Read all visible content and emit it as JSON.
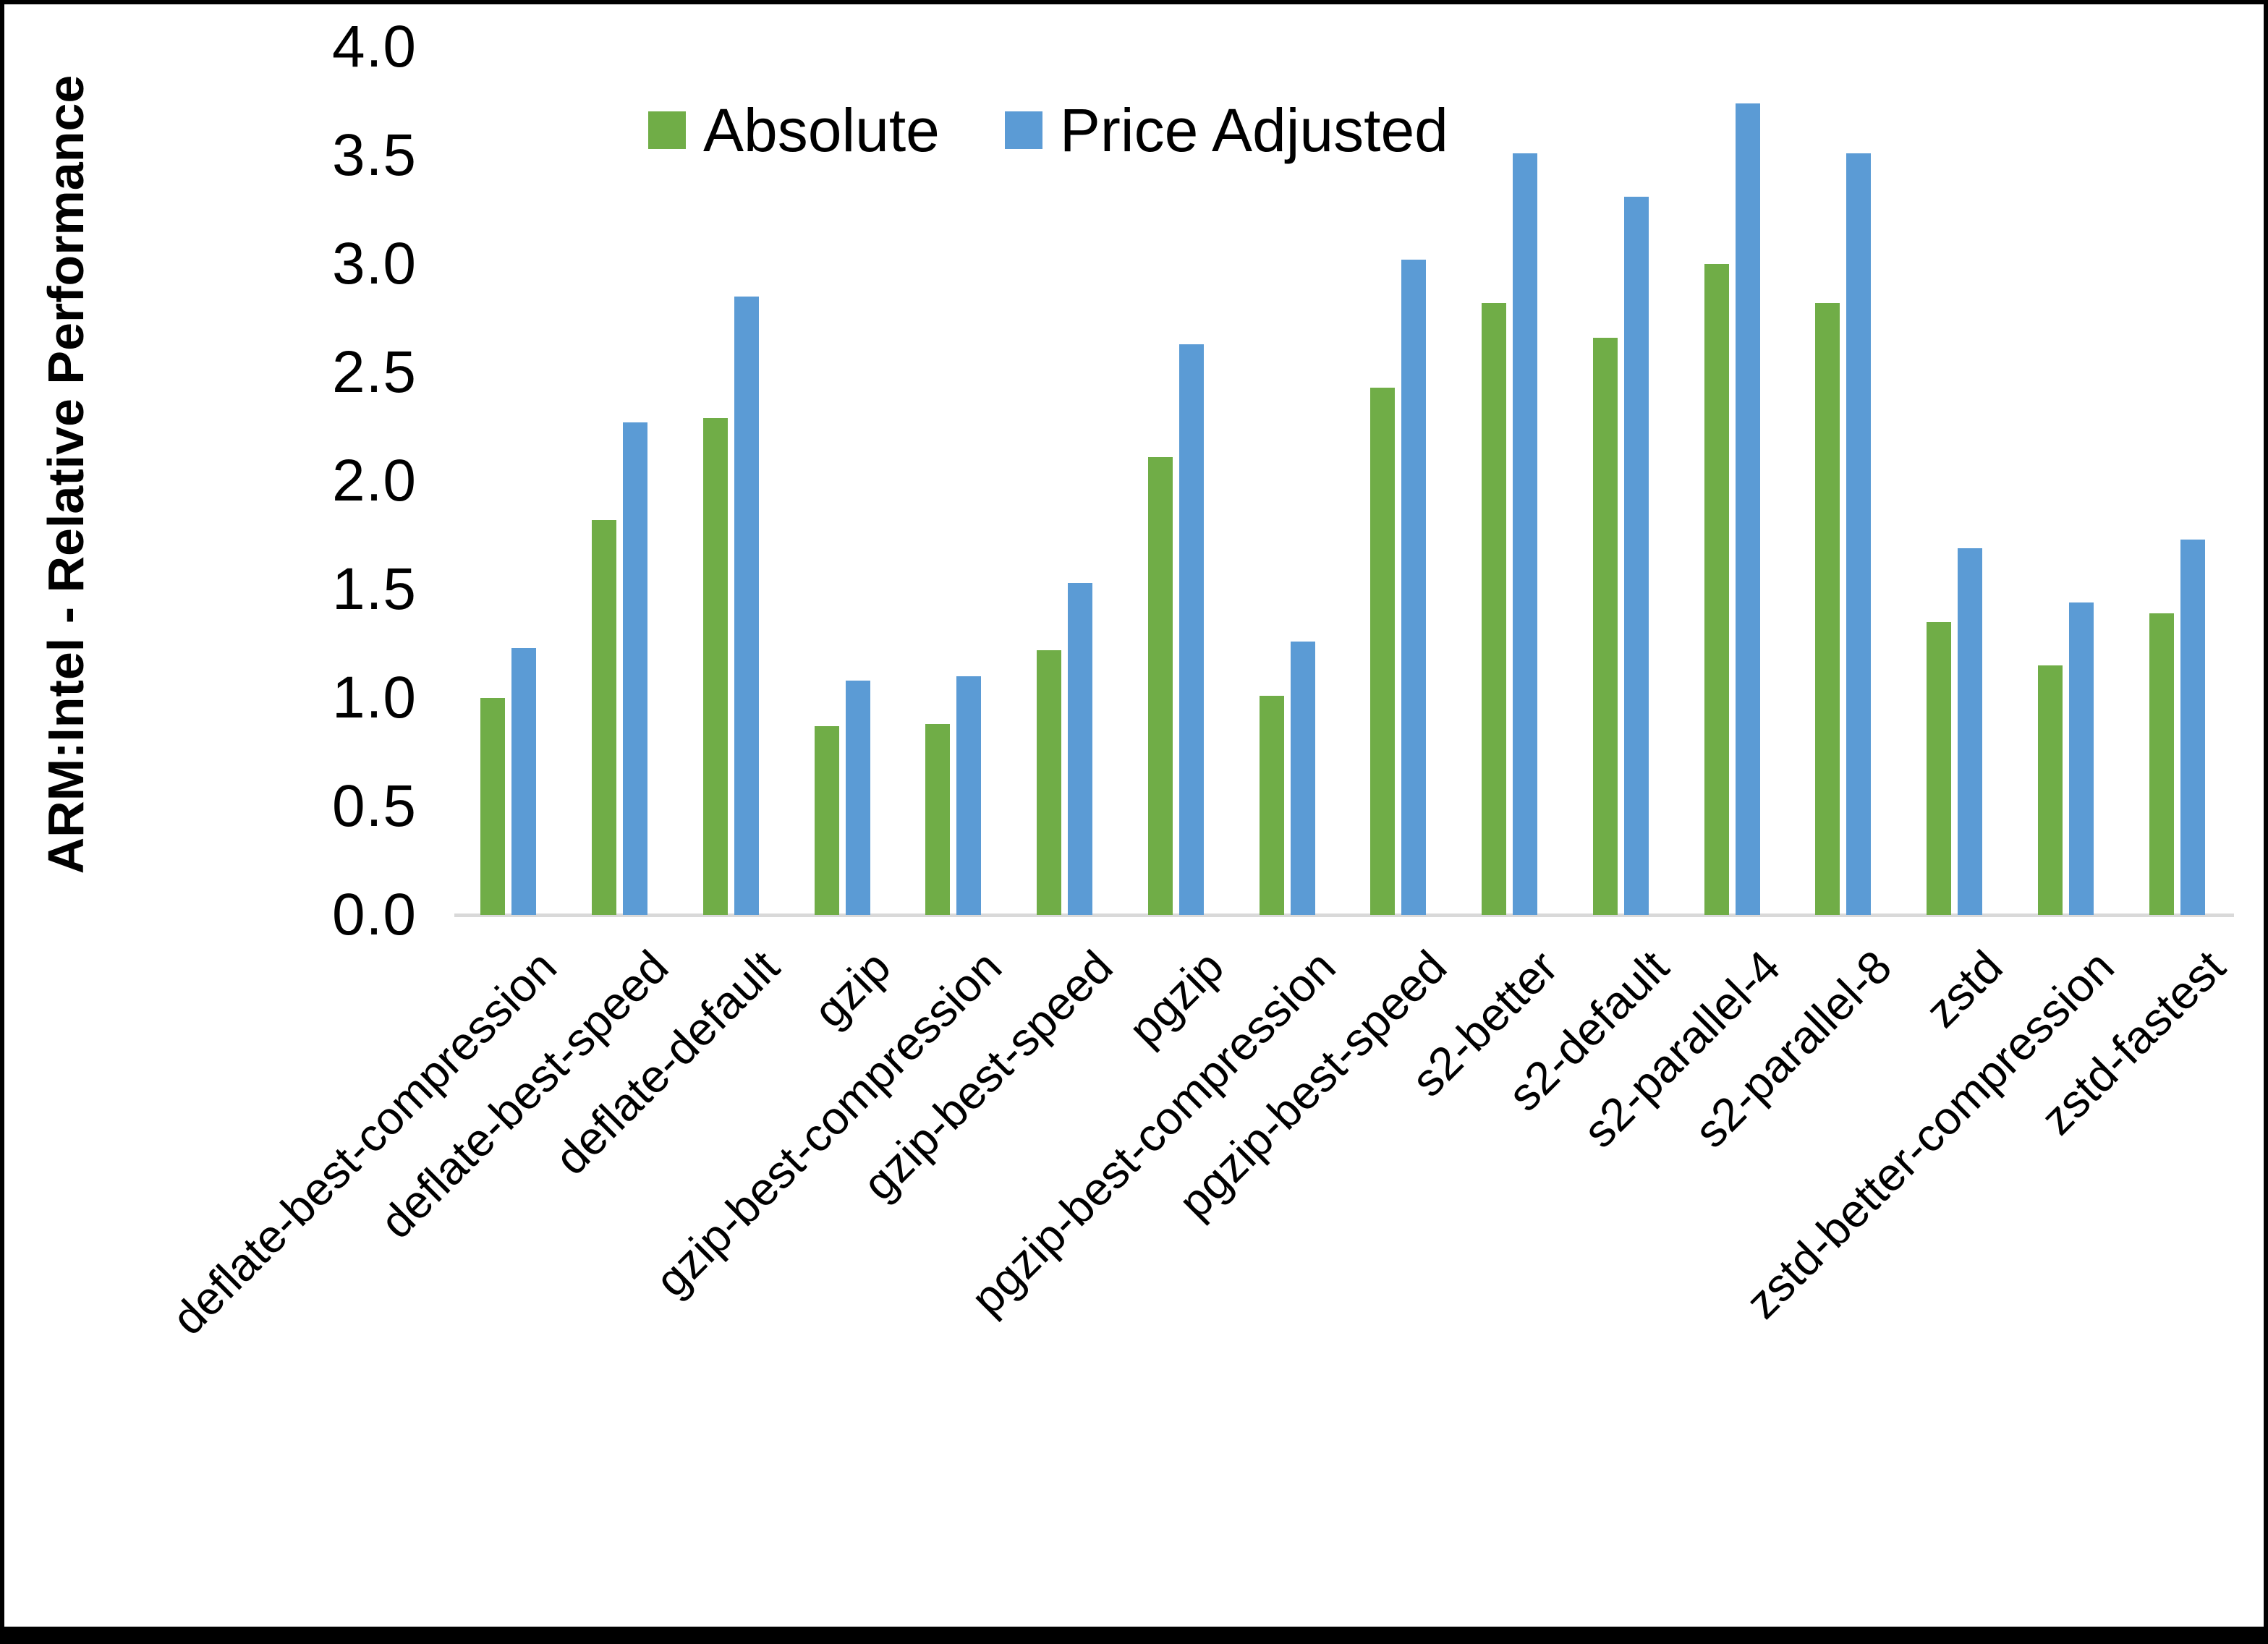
{
  "chart_data": {
    "type": "bar",
    "title": "",
    "xlabel": "",
    "ylabel": "ARM:Intel - Relative Performance",
    "ylim": [
      0.0,
      4.0
    ],
    "ytick_step": 0.5,
    "ytick_labels": [
      "0.0",
      "0.5",
      "1.0",
      "1.5",
      "2.0",
      "2.5",
      "3.0",
      "3.5",
      "4.0"
    ],
    "grid": false,
    "legend_position": "top-center",
    "background_color": "#ffffff",
    "axis_line_color": "#d9d9d9",
    "text_color": "#000000",
    "categories": [
      "deflate-best-compression",
      "deflate-best-speed",
      "deflate-default",
      "gzip",
      "gzip-best-compression",
      "gzip-best-speed",
      "pgzip",
      "pgzip-best-compression",
      "pgzip-best-speed",
      "s2-better",
      "s2-default",
      "s2-parallel-4",
      "s2-parallel-8",
      "zstd",
      "zstd-better-compression",
      "zstd-fastest"
    ],
    "series": [
      {
        "name": "Absolute",
        "color": "#70AD47",
        "values": [
          1.0,
          1.82,
          2.29,
          0.87,
          0.88,
          1.22,
          2.11,
          1.01,
          2.43,
          2.82,
          2.66,
          3.0,
          2.82,
          1.35,
          1.15,
          1.39
        ]
      },
      {
        "name": "Price Adjusted",
        "color": "#5B9BD5",
        "values": [
          1.23,
          2.27,
          2.85,
          1.08,
          1.1,
          1.53,
          2.63,
          1.26,
          3.02,
          3.51,
          3.31,
          3.74,
          3.51,
          1.69,
          1.44,
          1.73
        ]
      }
    ]
  }
}
